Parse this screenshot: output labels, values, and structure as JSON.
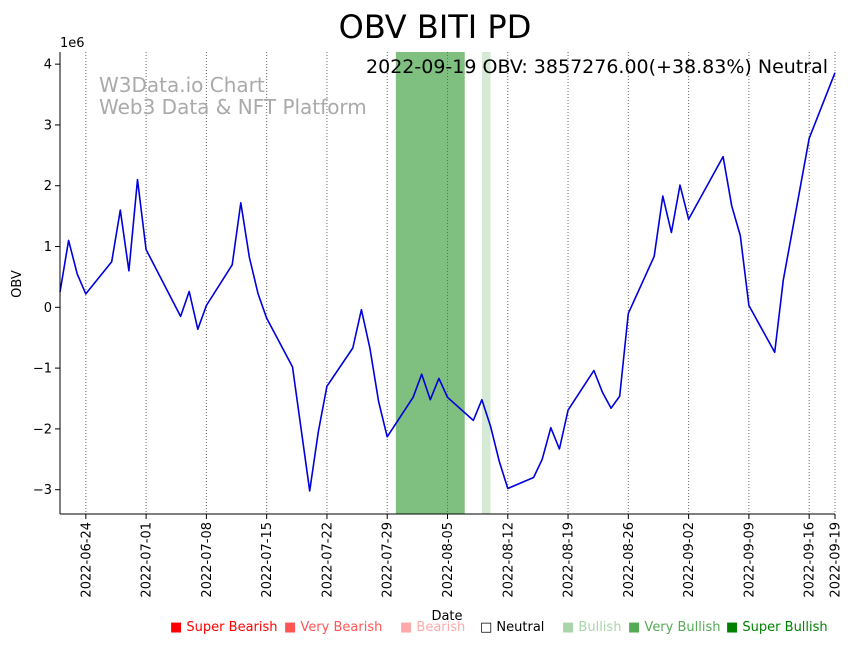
{
  "chart_data": {
    "type": "line",
    "title": "OBV BITI PD",
    "annotation": "2022-09-19 OBV: 3857276.00(+38.83%) Neutral",
    "watermark": [
      "W3Data.io Chart",
      "Web3 Data & NFT Platform"
    ],
    "xlabel": "Date",
    "ylabel": "OBV",
    "y_scale_label": "1e6",
    "ylim": [
      -3.4,
      4.2
    ],
    "y_ticks": [
      -3,
      -2,
      -1,
      0,
      1,
      2,
      3,
      4
    ],
    "y_tick_labels": [
      "−3",
      "−2",
      "−1",
      "0",
      "1",
      "2",
      "3",
      "4"
    ],
    "xlim": [
      "2022-06-21",
      "2022-09-19"
    ],
    "x_ticks": [
      "2022-06-24",
      "2022-07-01",
      "2022-07-08",
      "2022-07-15",
      "2022-07-22",
      "2022-07-29",
      "2022-08-05",
      "2022-08-12",
      "2022-08-19",
      "2022-08-26",
      "2022-09-02",
      "2022-09-09",
      "2022-09-16",
      "2022-09-19"
    ],
    "shaded_regions": [
      {
        "start": "2022-07-30",
        "end": "2022-08-07",
        "sentiment": "Very Bullish",
        "color": "#7fbf7f"
      },
      {
        "start": "2022-08-09",
        "end": "2022-08-10",
        "sentiment": "Bullish",
        "color": "#d4ead4"
      }
    ],
    "series": [
      {
        "name": "OBV",
        "color": "#0000dd",
        "x": [
          "2022-06-21",
          "2022-06-22",
          "2022-06-23",
          "2022-06-24",
          "2022-06-27",
          "2022-06-28",
          "2022-06-29",
          "2022-06-30",
          "2022-07-01",
          "2022-07-05",
          "2022-07-06",
          "2022-07-07",
          "2022-07-08",
          "2022-07-11",
          "2022-07-12",
          "2022-07-13",
          "2022-07-14",
          "2022-07-15",
          "2022-07-18",
          "2022-07-19",
          "2022-07-20",
          "2022-07-21",
          "2022-07-22",
          "2022-07-25",
          "2022-07-26",
          "2022-07-27",
          "2022-07-28",
          "2022-07-29",
          "2022-08-01",
          "2022-08-02",
          "2022-08-03",
          "2022-08-04",
          "2022-08-05",
          "2022-08-08",
          "2022-08-09",
          "2022-08-10",
          "2022-08-11",
          "2022-08-12",
          "2022-08-15",
          "2022-08-16",
          "2022-08-17",
          "2022-08-18",
          "2022-08-19",
          "2022-08-22",
          "2022-08-23",
          "2022-08-24",
          "2022-08-25",
          "2022-08-26",
          "2022-08-29",
          "2022-08-30",
          "2022-08-31",
          "2022-09-01",
          "2022-09-02",
          "2022-09-06",
          "2022-09-07",
          "2022-09-08",
          "2022-09-09",
          "2022-09-12",
          "2022-09-13",
          "2022-09-16",
          "2022-09-19"
        ],
        "values": [
          0.25,
          1.1,
          0.55,
          0.22,
          0.75,
          1.6,
          0.6,
          2.1,
          0.95,
          -0.15,
          0.26,
          -0.36,
          0.03,
          0.7,
          1.72,
          0.82,
          0.22,
          -0.18,
          -0.98,
          -2.0,
          -3.02,
          -2.05,
          -1.3,
          -0.67,
          -0.04,
          -0.68,
          -1.55,
          -2.13,
          -1.48,
          -1.1,
          -1.52,
          -1.17,
          -1.48,
          -1.86,
          -1.52,
          -1.96,
          -2.53,
          -2.98,
          -2.8,
          -2.5,
          -1.98,
          -2.33,
          -1.69,
          -1.04,
          -1.4,
          -1.66,
          -1.46,
          -0.1,
          0.84,
          1.83,
          1.23,
          2.01,
          1.45,
          2.48,
          1.67,
          1.18,
          0.03,
          -0.74,
          0.45,
          2.78,
          3.86
        ]
      }
    ]
  },
  "legend": [
    {
      "symbol": "■",
      "label": "Super Bearish",
      "color": "#ff0000"
    },
    {
      "symbol": "■",
      "label": "Very Bearish",
      "color": "#ff5555"
    },
    {
      "symbol": "■",
      "label": "Bearish",
      "color": "#ffaaaa"
    },
    {
      "symbol": "□",
      "label": "Neutral",
      "color": "#000000"
    },
    {
      "symbol": "■",
      "label": "Bullish",
      "color": "#aad4aa"
    },
    {
      "symbol": "■",
      "label": "Very Bullish",
      "color": "#55aa55"
    },
    {
      "symbol": "■",
      "label": "Super Bullish",
      "color": "#008000"
    }
  ]
}
